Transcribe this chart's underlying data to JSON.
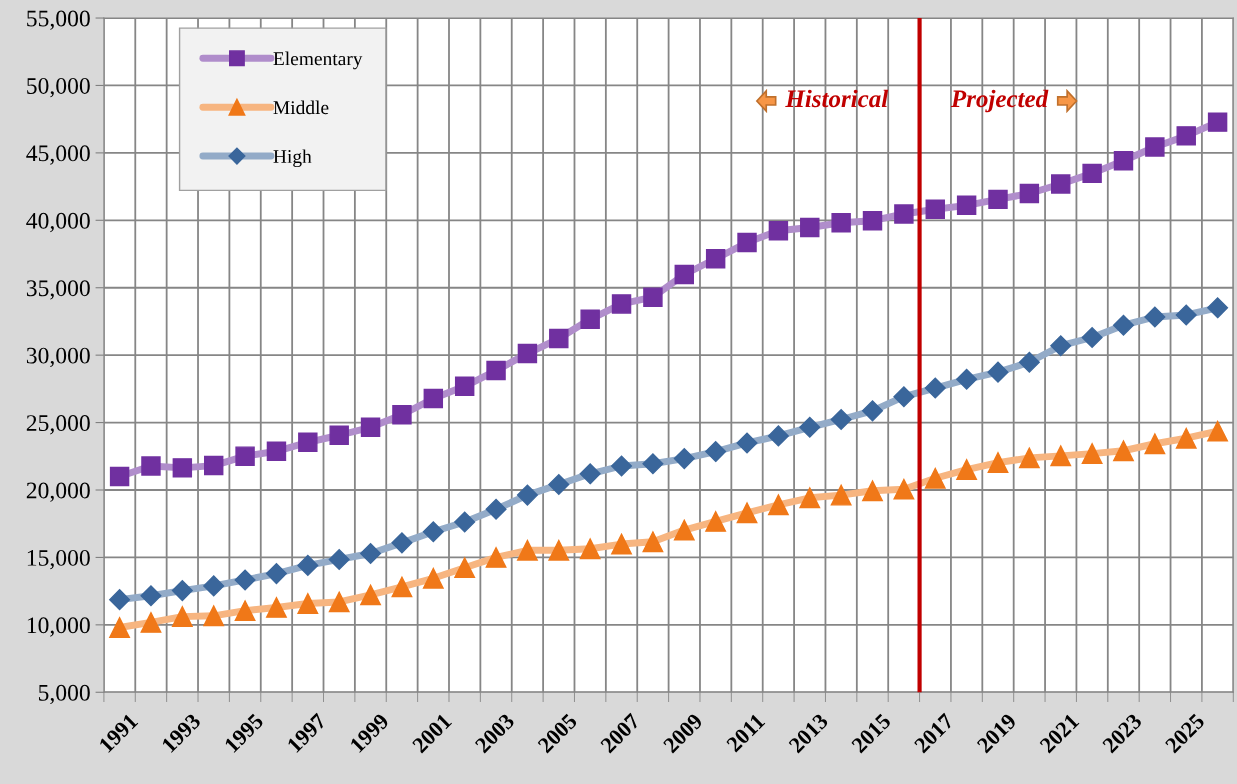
{
  "chart_data": {
    "type": "line",
    "categories": [
      "1991",
      null,
      "1993",
      null,
      "1995",
      null,
      "1997",
      null,
      "1999",
      null,
      "2001",
      null,
      "2003",
      null,
      "2005",
      null,
      "2007",
      null,
      "2009",
      null,
      "2011",
      null,
      "2013",
      null,
      "2015",
      null,
      "2017",
      null,
      "2019",
      null,
      "2021",
      null,
      "2023",
      null,
      "2025",
      null
    ],
    "series": [
      {
        "name": "Elementary",
        "color": "#7030a0",
        "marker": "square",
        "values": [
          21000,
          21780,
          21640,
          21810,
          22510,
          22870,
          23540,
          24060,
          24650,
          25580,
          26780,
          27690,
          28860,
          30120,
          31230,
          32660,
          33800,
          34300,
          35980,
          37150,
          38350,
          39230,
          39470,
          39820,
          39970,
          40470,
          40820,
          41110,
          41550,
          41990,
          42690,
          43480,
          44420,
          45440,
          46260,
          47280
        ]
      },
      {
        "name": "Middle",
        "color": "#f07818",
        "marker": "triangle",
        "values": [
          9800,
          10180,
          10610,
          10670,
          11050,
          11290,
          11580,
          11700,
          12220,
          12810,
          13450,
          14240,
          15000,
          15530,
          15530,
          15640,
          15990,
          16160,
          17030,
          17670,
          18310,
          18900,
          19420,
          19620,
          19940,
          20060,
          20870,
          21510,
          22030,
          22380,
          22530,
          22700,
          22910,
          23430,
          23840,
          24360
        ]
      },
      {
        "name": "High",
        "color": "#3a669b",
        "marker": "diamond",
        "values": [
          11870,
          12160,
          12540,
          12890,
          13330,
          13800,
          14410,
          14850,
          15290,
          16080,
          16900,
          17630,
          18570,
          19620,
          20410,
          21200,
          21780,
          21950,
          22330,
          22850,
          23490,
          24010,
          24650,
          25230,
          25870,
          26920,
          27560,
          28210,
          28740,
          29470,
          30700,
          31310,
          32220,
          32830,
          32980,
          33510
        ]
      }
    ],
    "ylim": [
      5000,
      55000
    ],
    "yticks": [
      {
        "value": 5000,
        "label": "5,000"
      },
      {
        "value": 10000,
        "label": "10,000"
      },
      {
        "value": 15000,
        "label": "15,000"
      },
      {
        "value": 20000,
        "label": "20,000"
      },
      {
        "value": 25000,
        "label": "25,000"
      },
      {
        "value": 30000,
        "label": "30,000"
      },
      {
        "value": 35000,
        "label": "35,000"
      },
      {
        "value": 40000,
        "label": "40,000"
      },
      {
        "value": 45000,
        "label": "45,000"
      },
      {
        "value": 50000,
        "label": "50,000"
      },
      {
        "value": 55000,
        "label": "55,000"
      }
    ],
    "ref_lines": [
      {
        "axis": "x",
        "value": "2017",
        "color": "#c00000"
      }
    ],
    "annotations": [
      "Historical",
      "Projected"
    ],
    "grid": true,
    "legend": "top left",
    "line_style": "solid"
  }
}
